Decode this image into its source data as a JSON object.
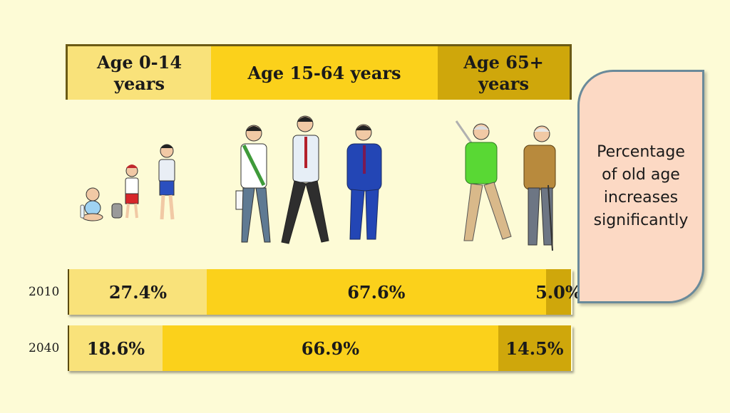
{
  "chart_data": {
    "type": "bar",
    "categories": [
      "Age 0-14 years",
      "Age 15-64 years",
      "Age 65+ years"
    ],
    "series": [
      {
        "name": "2010",
        "values": [
          27.4,
          67.6,
          5.0
        ],
        "labels": [
          "27.4%",
          "67.6%",
          "5.0%"
        ]
      },
      {
        "name": "2040",
        "values": [
          18.6,
          66.9,
          14.5
        ],
        "labels": [
          "18.6%",
          "66.9%",
          "14.5%"
        ]
      }
    ],
    "colors": [
      "#f9e27a",
      "#fbd11b",
      "#cfa70b"
    ],
    "stacked": true
  },
  "headers": {
    "h0a": "Age 0-14",
    "h0b": "years",
    "h1": "Age 15-64 years",
    "h2a": "Age 65+",
    "h2b": "years"
  },
  "rows": {
    "r0": "2010",
    "r1": "2040"
  },
  "note": {
    "line1": "Percentage",
    "line2": "of old age",
    "line3": "increases",
    "line4": "significantly"
  },
  "icons": [
    "baby-icon",
    "child-icon",
    "schoolboy-icon",
    "student-icon",
    "office-worker-icon",
    "businessman-icon",
    "golfer-icon",
    "elderly-man-icon"
  ]
}
